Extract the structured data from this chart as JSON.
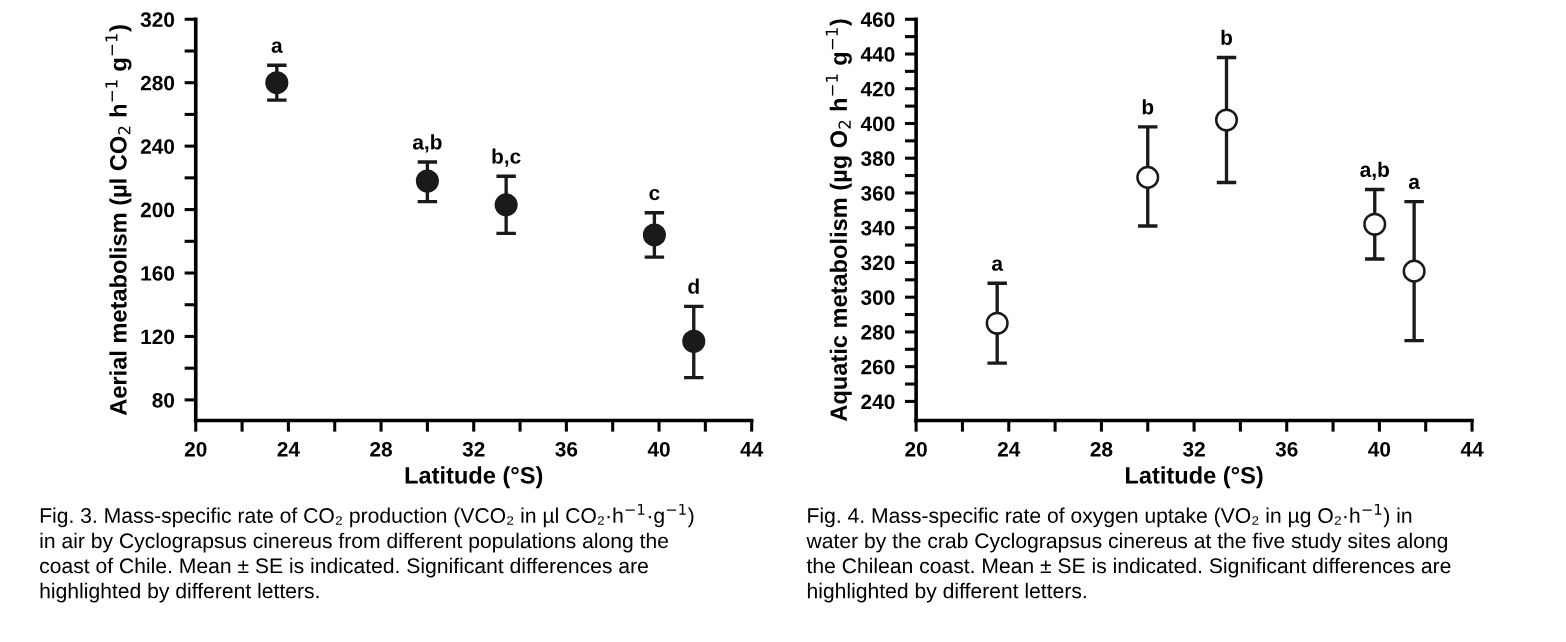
{
  "chart_data": [
    {
      "type": "scatter",
      "xlabel": "Latitude (°S)",
      "ylabel": "Aerial metabolism (µl CO$_{2}$ h$^{−1}$ g$^{−1}$)",
      "xlim": [
        20,
        44
      ],
      "ylim": [
        67,
        320
      ],
      "xticks": [
        20,
        {
          "value": 22,
          "label": null
        },
        24,
        {
          "value": 26,
          "label": null
        },
        28,
        {
          "value": 30,
          "label": null
        },
        32,
        {
          "value": 34,
          "label": null
        },
        36,
        {
          "value": 38,
          "label": null
        },
        40,
        {
          "value": 42,
          "label": null
        },
        44
      ],
      "yticks": [
        80,
        {
          "value": 100,
          "label": null
        },
        120,
        {
          "value": 140,
          "label": null
        },
        160,
        {
          "value": 180,
          "label": null
        },
        200,
        {
          "value": 220,
          "label": null
        },
        240,
        {
          "value": 260,
          "label": null
        },
        280,
        {
          "value": 300,
          "label": null
        },
        320
      ],
      "grid": false,
      "legend": false,
      "marker": "circle",
      "series": [
        {
          "color": "#1a1a1a",
          "x": [
            23.5,
            30,
            33.4,
            39.8,
            41.5
          ],
          "values": [
            280,
            218,
            203,
            184,
            117
          ],
          "errors": [
            [
              269,
              291
            ],
            [
              205,
              230
            ],
            [
              185,
              221
            ],
            [
              170,
              198
            ],
            [
              94,
              139
            ]
          ]
        }
      ],
      "annotations": [
        {
          "text": "a",
          "x": 23.5,
          "y": 291
        },
        {
          "text": "a,b",
          "x": 30,
          "y": 230
        },
        {
          "text": "b,c",
          "x": 33.4,
          "y": 221
        },
        {
          "text": "c",
          "x": 39.8,
          "y": 198
        },
        {
          "text": "d",
          "x": 41.5,
          "y": 139
        },
        "Fig. 3. Mass-specific rate of CO₂ production (VCO₂ in µl CO₂·h$^{−1}$·g$^{−1}$)\nin air by Cyclograpsus cinereus from different populations along the\ncoast of Chile. Mean ± SE is indicated. Significant differences are\nhighlighted by different letters."
      ]
    },
    {
      "type": "scatter",
      "xlabel": "Latitude (°S)",
      "ylabel": "Aquatic metabolism (µg O$_{2}$ h$^{−1}$ g$^{−1}$)",
      "xlim": [
        20,
        44
      ],
      "ylim": [
        229,
        460
      ],
      "xticks": [
        20,
        {
          "value": 22,
          "label": null
        },
        24,
        {
          "value": 26,
          "label": null
        },
        28,
        {
          "value": 30,
          "label": null
        },
        32,
        {
          "value": 34,
          "label": null
        },
        36,
        {
          "value": 38,
          "label": null
        },
        40,
        {
          "value": 42,
          "label": null
        },
        44
      ],
      "yticks": [
        240,
        {
          "value": 250,
          "label": null
        },
        260,
        {
          "value": 270,
          "label": null
        },
        280,
        {
          "value": 290,
          "label": null
        },
        300,
        {
          "value": 310,
          "label": null
        },
        320,
        {
          "value": 330,
          "label": null
        },
        340,
        {
          "value": 350,
          "label": null
        },
        360,
        {
          "value": 370,
          "label": null
        },
        380,
        {
          "value": 390,
          "label": null
        },
        400,
        {
          "value": 410,
          "label": null
        },
        420,
        {
          "value": 430,
          "label": null
        },
        440,
        {
          "value": 450,
          "label": null
        },
        460
      ],
      "grid": false,
      "legend": false,
      "marker": "circle",
      "series": [
        {
          "color": "#ffffff",
          "x": [
            23.5,
            30,
            33.4,
            39.8,
            41.5
          ],
          "values": [
            285,
            369,
            402,
            342,
            315
          ],
          "errors": [
            [
              262,
              308
            ],
            [
              341,
              398
            ],
            [
              366,
              438
            ],
            [
              322,
              362
            ],
            [
              275,
              355
            ]
          ]
        }
      ],
      "annotations": [
        {
          "text": "a",
          "x": 23.5,
          "y": 308
        },
        {
          "text": "b",
          "x": 30,
          "y": 398
        },
        {
          "text": "b",
          "x": 33.4,
          "y": 438
        },
        {
          "text": "a,b",
          "x": 39.8,
          "y": 362
        },
        {
          "text": "a",
          "x": 41.5,
          "y": 355
        },
        "Fig. 4. Mass-specific rate of oxygen uptake (VO₂ in µg O₂·h$^{−1}$) in\nwater by the crab Cyclograpsus cinereus at the five study sites along\nthe Chilean coast. Mean ± SE is indicated. Significant differences are\nhighlighted by different letters."
      ]
    }
  ]
}
